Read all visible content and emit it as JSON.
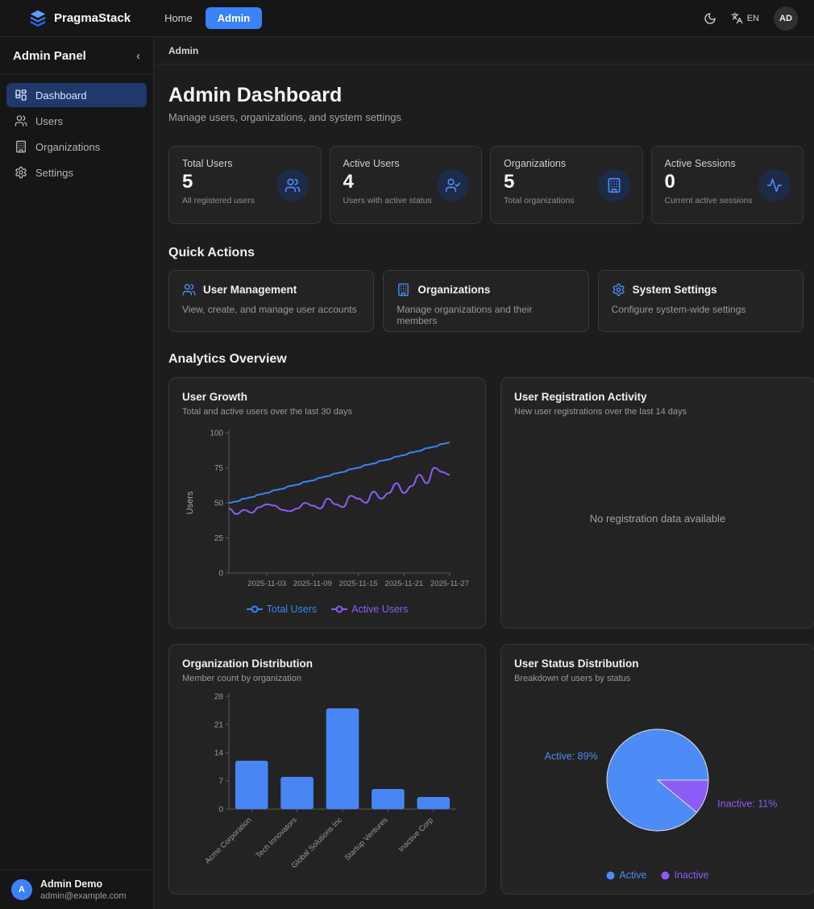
{
  "navbar": {
    "brand": "PragmaStack",
    "links": [
      {
        "label": "Home",
        "active": false
      },
      {
        "label": "Admin",
        "active": true
      }
    ],
    "lang_label": "EN",
    "avatar_initials": "AD"
  },
  "sidebar": {
    "title": "Admin Panel",
    "collapse_icon": "‹",
    "items": [
      {
        "label": "Dashboard",
        "icon": "dashboard-icon",
        "active": true
      },
      {
        "label": "Users",
        "icon": "users-icon",
        "active": false
      },
      {
        "label": "Organizations",
        "icon": "building-icon",
        "active": false
      },
      {
        "label": "Settings",
        "icon": "gear-icon",
        "active": false
      }
    ],
    "user": {
      "initial": "A",
      "name": "Admin Demo",
      "email": "admin@example.com"
    }
  },
  "breadcrumb": "Admin",
  "page": {
    "title": "Admin Dashboard",
    "subtitle": "Manage users, organizations, and system settings"
  },
  "stats": [
    {
      "label": "Total Users",
      "value": "5",
      "description": "All registered users",
      "icon": "users-icon"
    },
    {
      "label": "Active Users",
      "value": "4",
      "description": "Users with active status",
      "icon": "user-check-icon"
    },
    {
      "label": "Organizations",
      "value": "5",
      "description": "Total organizations",
      "icon": "building-icon"
    },
    {
      "label": "Active Sessions",
      "value": "0",
      "description": "Current active sessions",
      "icon": "activity-icon"
    }
  ],
  "quick_actions": {
    "heading": "Quick Actions",
    "items": [
      {
        "title": "User Management",
        "description": "View, create, and manage user accounts",
        "icon": "users-icon"
      },
      {
        "title": "Organizations",
        "description": "Manage organizations and their members",
        "icon": "building-icon"
      },
      {
        "title": "System Settings",
        "description": "Configure system-wide settings",
        "icon": "gear-icon"
      }
    ]
  },
  "analytics_heading": "Analytics Overview",
  "colors": {
    "accent": "#3b82f6",
    "purple": "#8b5cf6",
    "pie_blue": "#4d8bf6",
    "bar_blue": "#4886f5"
  },
  "chart_data": [
    {
      "type": "line",
      "title": "User Growth",
      "subtitle": "Total and active users over the last 30 days",
      "ylabel": "Users",
      "ylim": [
        0,
        100
      ],
      "yticks": [
        0,
        25,
        50,
        75,
        100
      ],
      "xticks": [
        "2025-11-03",
        "2025-11-09",
        "2025-11-15",
        "2025-11-21",
        "2025-11-27"
      ],
      "x": [
        "2025-10-29",
        "2025-10-30",
        "2025-10-31",
        "2025-11-01",
        "2025-11-02",
        "2025-11-03",
        "2025-11-04",
        "2025-11-05",
        "2025-11-06",
        "2025-11-07",
        "2025-11-08",
        "2025-11-09",
        "2025-11-10",
        "2025-11-11",
        "2025-11-12",
        "2025-11-13",
        "2025-11-14",
        "2025-11-15",
        "2025-11-16",
        "2025-11-17",
        "2025-11-18",
        "2025-11-19",
        "2025-11-20",
        "2025-11-21",
        "2025-11-22",
        "2025-11-23",
        "2025-11-24",
        "2025-11-25",
        "2025-11-26",
        "2025-11-27"
      ],
      "series": [
        {
          "name": "Total Users",
          "color": "#3b82f6",
          "values": [
            50,
            51,
            53,
            54,
            56,
            57,
            59,
            60,
            62,
            63,
            65,
            66,
            68,
            69,
            71,
            72,
            74,
            75,
            77,
            78,
            80,
            81,
            83,
            84,
            86,
            87,
            89,
            90,
            92,
            93
          ]
        },
        {
          "name": "Active Users",
          "color": "#8b5cf6",
          "values": [
            46,
            42,
            45,
            43,
            47,
            49,
            48,
            45,
            44,
            46,
            50,
            48,
            46,
            53,
            49,
            47,
            55,
            53,
            50,
            58,
            53,
            57,
            64,
            57,
            62,
            70,
            64,
            75,
            72,
            70
          ]
        }
      ],
      "legend_position": "bottom",
      "grid": false
    },
    {
      "type": "empty",
      "title": "User Registration Activity",
      "subtitle": "New user registrations over the last 14 days",
      "empty_message": "No registration data available"
    },
    {
      "type": "bar",
      "title": "Organization Distribution",
      "subtitle": "Member count by organization",
      "categories": [
        "Acme Corporation",
        "Tech Innovators",
        "Global Solutions Inc",
        "Startup Ventures",
        "Inactive Corp"
      ],
      "values": [
        12,
        8,
        25,
        5,
        3
      ],
      "ylim": [
        0,
        28
      ],
      "yticks": [
        0,
        7,
        14,
        21,
        28
      ],
      "color": "#4886f5",
      "grid": false
    },
    {
      "type": "pie",
      "title": "User Status Distribution",
      "subtitle": "Breakdown of users by status",
      "slices": [
        {
          "name": "Active",
          "value": 89,
          "label": "Active: 89%",
          "color": "#4d8bf6"
        },
        {
          "name": "Inactive",
          "value": 11,
          "label": "Inactive: 11%",
          "color": "#8b5cf6"
        }
      ],
      "legend_position": "bottom"
    }
  ]
}
